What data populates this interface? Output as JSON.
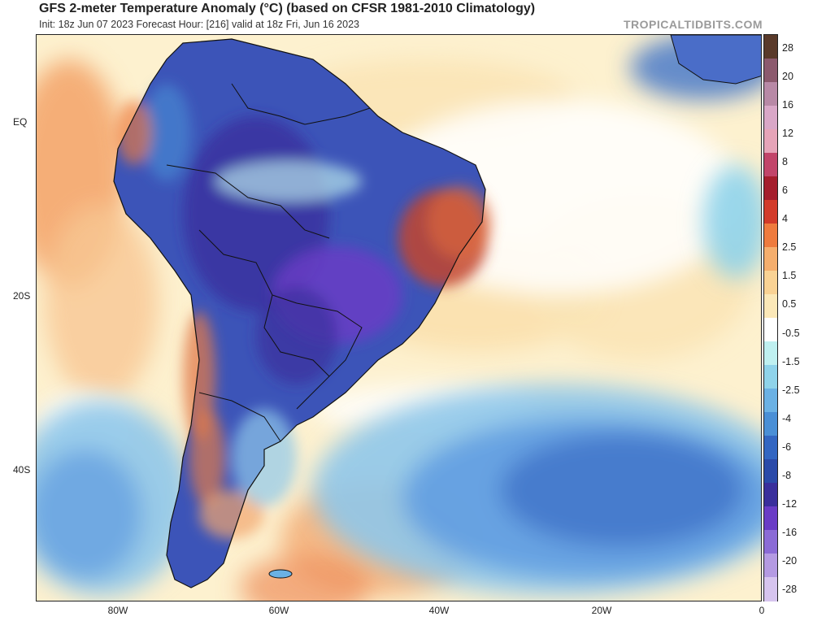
{
  "header": {
    "title": "GFS 2-meter Temperature Anomaly (°C) (based on CFSR 1981-2010 Climatology)",
    "subtitle": "Init: 18z Jun 07 2023   Forecast Hour: [216]   valid at 18z Fri, Jun 16 2023",
    "credit": "TROPICALTIDBITS.COM"
  },
  "axes": {
    "lat_labels": [
      "EQ",
      "20S",
      "40S"
    ],
    "lon_labels": [
      "80W",
      "60W",
      "40W",
      "20W",
      "0"
    ]
  },
  "colorbar": {
    "labels": [
      "28",
      "20",
      "16",
      "12",
      "8",
      "6",
      "4",
      "2.5",
      "1.5",
      "0.5",
      "-0.5",
      "-1.5",
      "-2.5",
      "-4",
      "-6",
      "-8",
      "-12",
      "-16",
      "-20",
      "-28"
    ],
    "colors": [
      "#5a3a2a",
      "#8c5a6e",
      "#b889a6",
      "#d9a7c7",
      "#e6a4b8",
      "#c2456a",
      "#a51e2d",
      "#d23b2a",
      "#ee7b3e",
      "#f5ae6d",
      "#f9d294",
      "#fbe8b8",
      "#ffffff",
      "#bff0f0",
      "#8fd3ea",
      "#6bb1e4",
      "#4a8fd6",
      "#3366c2",
      "#2b4aa9",
      "#3a2f9c",
      "#6a3cc6",
      "#8b6bd6",
      "#b49ae2",
      "#d6c4ee"
    ]
  },
  "map": {
    "ocean_color": "#fdf1cf",
    "land_outline_color": "#111111"
  }
}
